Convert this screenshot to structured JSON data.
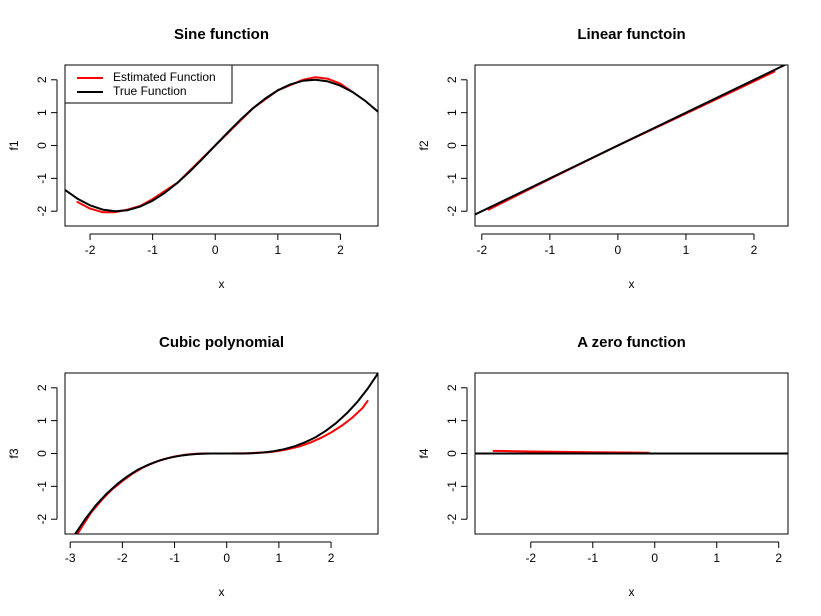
{
  "colors": {
    "estimated": "#ff0000",
    "true": "#000000"
  },
  "charts": [
    {
      "type": "line",
      "title": "Sine function",
      "xlabel": "x",
      "ylabel": "f1",
      "xlim": [
        -2.4,
        2.6
      ],
      "ylim": [
        -2.45,
        2.45
      ],
      "xticks": [
        -2,
        -1,
        0,
        1,
        2
      ],
      "yticks": [
        -2,
        -1,
        0,
        1,
        2
      ],
      "legend": {
        "position": "top-left",
        "entries": [
          "Estimated Function",
          "True Function"
        ]
      },
      "series": [
        {
          "name": "Estimated Function",
          "color": "#ff0000",
          "x": [
            -2.2,
            -2.0,
            -1.8,
            -1.6,
            -1.4,
            -1.2,
            -1.0,
            -0.6,
            0.0,
            0.6,
            1.0,
            1.4,
            1.6,
            1.8,
            2.0,
            2.2
          ],
          "y": [
            -1.72,
            -1.92,
            -2.03,
            -2.03,
            -1.95,
            -1.84,
            -1.63,
            -1.13,
            0.0,
            1.13,
            1.68,
            2.0,
            2.08,
            2.03,
            1.88,
            1.62
          ]
        },
        {
          "name": "True Function",
          "color": "#000000",
          "x": [
            -2.4,
            -2.2,
            -2.0,
            -1.8,
            -1.6,
            -1.4,
            -1.2,
            -1.0,
            -0.8,
            -0.6,
            -0.4,
            -0.2,
            0.0,
            0.2,
            0.4,
            0.6,
            0.8,
            1.0,
            1.2,
            1.4,
            1.6,
            1.8,
            2.0,
            2.2,
            2.4,
            2.6
          ],
          "y": [
            -1.35,
            -1.62,
            -1.82,
            -1.95,
            -2.0,
            -1.97,
            -1.86,
            -1.68,
            -1.43,
            -1.13,
            -0.78,
            -0.4,
            0.0,
            0.4,
            0.78,
            1.13,
            1.43,
            1.68,
            1.86,
            1.97,
            2.0,
            1.95,
            1.82,
            1.62,
            1.35,
            1.03
          ]
        }
      ]
    },
    {
      "type": "line",
      "title": "Linear functoin",
      "xlabel": "x",
      "ylabel": "f2",
      "xlim": [
        -2.1,
        2.5
      ],
      "ylim": [
        -2.45,
        2.45
      ],
      "xticks": [
        -2,
        -1,
        0,
        1,
        2
      ],
      "yticks": [
        -2,
        -1,
        0,
        1,
        2
      ],
      "series": [
        {
          "name": "Estimated Function",
          "color": "#ff0000",
          "x": [
            -1.9,
            -1.0,
            0.0,
            1.0,
            2.0,
            2.3
          ],
          "y": [
            -1.95,
            -1.02,
            0.0,
            0.97,
            1.95,
            2.25
          ]
        },
        {
          "name": "True Function",
          "color": "#000000",
          "x": [
            -2.1,
            2.5
          ],
          "y": [
            -2.1,
            2.5
          ]
        }
      ]
    },
    {
      "type": "line",
      "title": "Cubic polynomial",
      "xlabel": "x",
      "ylabel": "f3",
      "xlim": [
        -3.1,
        2.9
      ],
      "ylim": [
        -2.45,
        2.45
      ],
      "xticks": [
        -3,
        -2,
        -1,
        0,
        1,
        2
      ],
      "yticks": [
        -2,
        -1,
        0,
        1,
        2
      ],
      "series": [
        {
          "name": "Estimated Function",
          "color": "#ff0000",
          "x": [
            -2.85,
            -2.6,
            -2.4,
            -2.2,
            -2.0,
            -1.8,
            -1.6,
            -1.4,
            -1.2,
            -1.0,
            -0.8,
            -0.6,
            -0.4,
            0.0,
            0.4,
            0.8,
            1.0,
            1.2,
            1.4,
            1.6,
            1.8,
            2.0,
            2.2,
            2.4,
            2.6,
            2.7
          ],
          "y": [
            -2.42,
            -1.8,
            -1.42,
            -1.1,
            -0.84,
            -0.61,
            -0.42,
            -0.28,
            -0.17,
            -0.09,
            -0.04,
            -0.01,
            0.0,
            0.0,
            0.01,
            0.04,
            0.08,
            0.14,
            0.22,
            0.33,
            0.47,
            0.64,
            0.84,
            1.08,
            1.38,
            1.6
          ]
        },
        {
          "name": "True Function",
          "color": "#000000",
          "x": [
            -2.9,
            -2.7,
            -2.5,
            -2.3,
            -2.1,
            -1.9,
            -1.7,
            -1.5,
            -1.3,
            -1.1,
            -0.9,
            -0.7,
            -0.5,
            -0.3,
            0.0,
            0.3,
            0.5,
            0.7,
            0.9,
            1.1,
            1.3,
            1.5,
            1.7,
            1.9,
            2.1,
            2.3,
            2.5,
            2.7,
            2.9
          ],
          "y": [
            -2.44,
            -1.97,
            -1.56,
            -1.22,
            -0.93,
            -0.69,
            -0.49,
            -0.34,
            -0.22,
            -0.13,
            -0.07,
            -0.03,
            -0.01,
            0.0,
            0.0,
            0.0,
            0.01,
            0.03,
            0.07,
            0.13,
            0.22,
            0.34,
            0.49,
            0.69,
            0.93,
            1.22,
            1.56,
            1.97,
            2.44
          ]
        }
      ]
    },
    {
      "type": "line",
      "title": "A zero function",
      "xlabel": "x",
      "ylabel": "f4",
      "xlim": [
        -2.9,
        2.15
      ],
      "ylim": [
        -2.45,
        2.45
      ],
      "xticks": [
        -2,
        -1,
        0,
        1,
        2
      ],
      "yticks": [
        -2,
        -1,
        0,
        1,
        2
      ],
      "series": [
        {
          "name": "Estimated Function",
          "color": "#ff0000",
          "x": [
            -2.6,
            -2.0,
            -1.0,
            -0.5,
            -0.1
          ],
          "y": [
            0.08,
            0.06,
            0.04,
            0.03,
            0.02
          ]
        },
        {
          "name": "True Function",
          "color": "#000000",
          "x": [
            -2.9,
            2.15
          ],
          "y": [
            0.0,
            0.0
          ]
        }
      ]
    }
  ]
}
